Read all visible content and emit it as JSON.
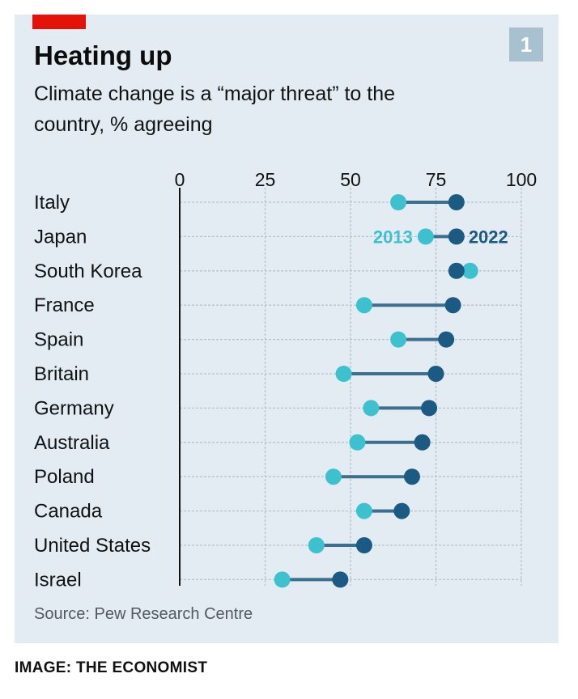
{
  "header": {
    "title": "Heating up",
    "subtitle": "Climate change is a “major threat” to the country, % agreeing",
    "badge": "1"
  },
  "footer": {
    "source": "Source: Pew Research Centre",
    "credit": "IMAGE: THE ECONOMIST"
  },
  "colors": {
    "panel": "#e2ecf2",
    "brand_red": "#e3120b",
    "series_2013": "#3ec1cf",
    "series_2022": "#1b5a82",
    "connector": "#3b6f8d"
  },
  "chart_data": {
    "type": "dot-plot",
    "xlim": [
      0,
      100
    ],
    "ticks": [
      0,
      25,
      50,
      75,
      100
    ],
    "grid": true,
    "categories": [
      "Italy",
      "Japan",
      "South Korea",
      "France",
      "Spain",
      "Britain",
      "Germany",
      "Australia",
      "Poland",
      "Canada",
      "United States",
      "Israel"
    ],
    "series": [
      {
        "name": "2013",
        "values": [
          64,
          72,
          85,
          54,
          64,
          48,
          56,
          52,
          45,
          54,
          40,
          30
        ]
      },
      {
        "name": "2022",
        "values": [
          81,
          81,
          81,
          80,
          78,
          75,
          73,
          71,
          68,
          65,
          54,
          47
        ]
      }
    ],
    "legend": {
      "placement": "inline on Japan row",
      "labels": [
        "2013",
        "2022"
      ]
    }
  }
}
